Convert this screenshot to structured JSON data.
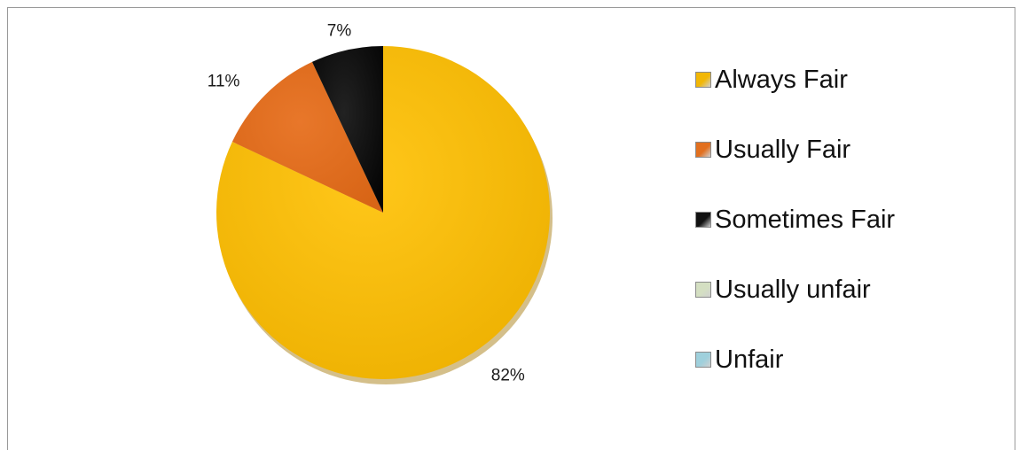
{
  "chart_data": {
    "type": "pie",
    "categories": [
      "Always Fair",
      "Usually Fair",
      "Sometimes Fair",
      "Usually unfair",
      "Unfair"
    ],
    "values": [
      82,
      11,
      7,
      0,
      0
    ],
    "data_labels": [
      "82%",
      "11%",
      "7%",
      "",
      ""
    ],
    "colors": [
      "#F2B705",
      "#E2701F",
      "#111111",
      "#D4DFC2",
      "#9FD0DC"
    ],
    "legend_position": "right"
  }
}
